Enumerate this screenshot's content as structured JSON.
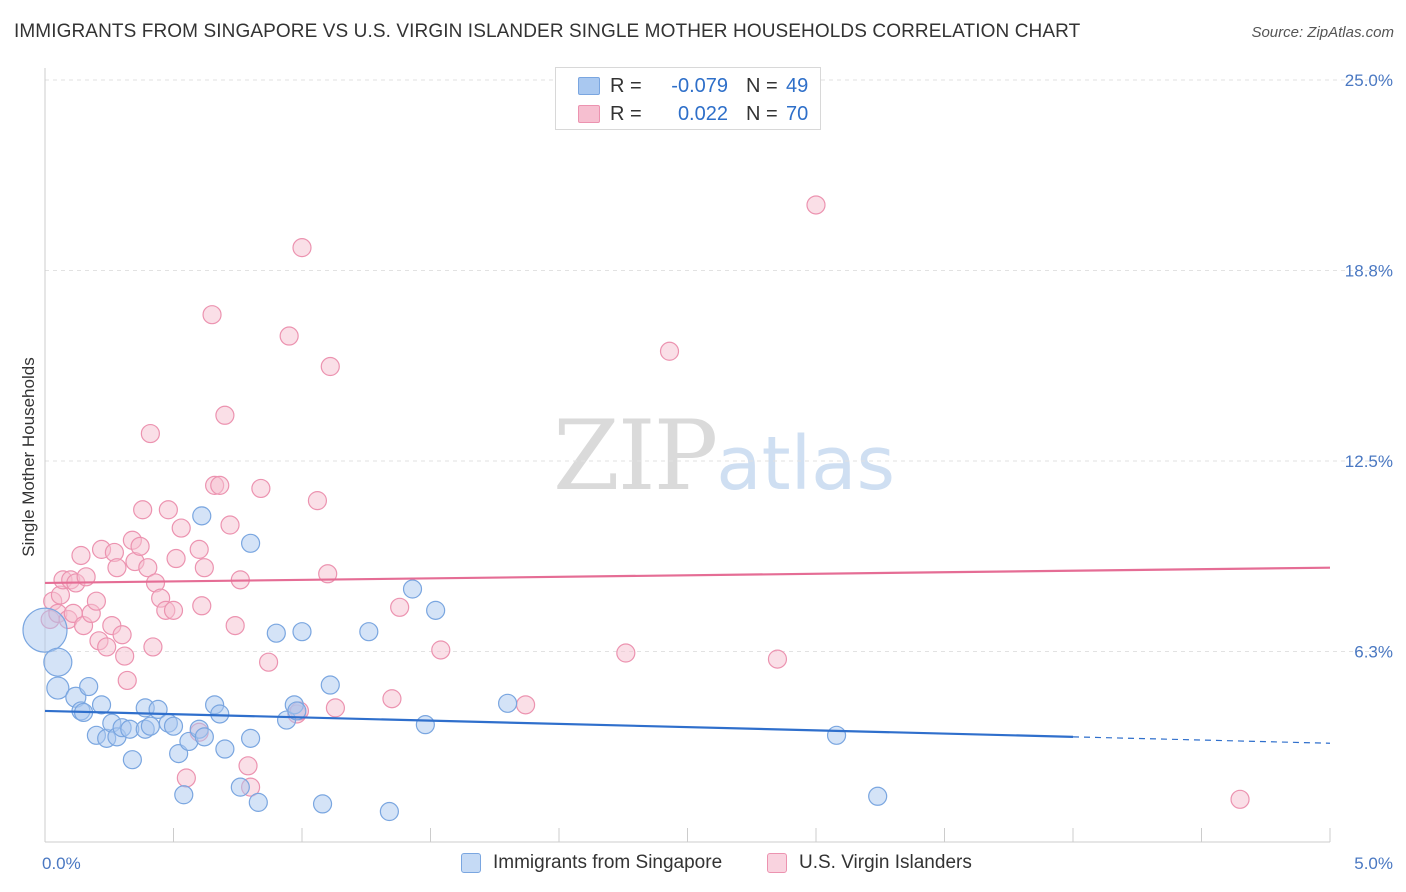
{
  "title": "IMMIGRANTS FROM SINGAPORE VS U.S. VIRGIN ISLANDER SINGLE MOTHER HOUSEHOLDS CORRELATION CHART",
  "source": "Source: ZipAtlas.com",
  "watermark": {
    "zip": "ZIP",
    "atlas": "atlas"
  },
  "legend": {
    "rows": [
      {
        "r_label": "R =",
        "r_value": "-0.079",
        "n_label": "N =",
        "n_value": "49",
        "color": "#a9c8f0",
        "border": "#7aa6e0"
      },
      {
        "r_label": "R =",
        "r_value": "0.022",
        "n_label": "N =",
        "n_value": "70",
        "color": "#f6bfd0",
        "border": "#ec93b0"
      }
    ]
  },
  "bottom_legend": [
    {
      "label": "Immigrants from Singapore",
      "color": "#c5daf5",
      "border": "#7aa6e0"
    },
    {
      "label": "U.S. Virgin Islanders",
      "color": "#f9d3df",
      "border": "#ec93b0"
    }
  ],
  "chart_data": {
    "type": "scatter",
    "title": "IMMIGRANTS FROM SINGAPORE VS U.S. VIRGIN ISLANDER SINGLE MOTHER HOUSEHOLDS CORRELATION CHART",
    "xlabel": "",
    "ylabel": "Single Mother Households",
    "xlim": [
      0.0,
      5.0
    ],
    "ylim": [
      0.0,
      25.0
    ],
    "x_tick_labels": [
      "0.0%",
      "5.0%"
    ],
    "y_ticks": [
      6.25,
      12.5,
      18.75,
      25.0
    ],
    "y_tick_labels": [
      "6.3%",
      "12.5%",
      "18.8%",
      "25.0%"
    ],
    "grid": true,
    "legend_position": "top-center",
    "series": [
      {
        "name": "Immigrants from Singapore",
        "color": "#7aa6e0",
        "fill": "#a9c8f0",
        "trend": {
          "x": [
            0.0,
            4.0
          ],
          "y": [
            4.3,
            3.45
          ],
          "dashed_to": [
            5.0,
            3.24
          ],
          "color": "#2f6fcc"
        },
        "points": [
          [
            0.0,
            6.95,
            22
          ],
          [
            0.05,
            5.9,
            14
          ],
          [
            0.05,
            5.05,
            11
          ],
          [
            0.12,
            4.75,
            10
          ],
          [
            0.17,
            5.1,
            9
          ],
          [
            0.14,
            4.3,
            9
          ],
          [
            0.15,
            4.25,
            9
          ],
          [
            0.22,
            4.5,
            9
          ],
          [
            0.2,
            3.5,
            9
          ],
          [
            0.24,
            3.4,
            9
          ],
          [
            0.26,
            3.9,
            9
          ],
          [
            0.28,
            3.45,
            9
          ],
          [
            0.3,
            3.75,
            9
          ],
          [
            0.33,
            3.7,
            9
          ],
          [
            0.34,
            2.7,
            9
          ],
          [
            0.39,
            3.7,
            9
          ],
          [
            0.39,
            4.4,
            9
          ],
          [
            0.41,
            3.8,
            9
          ],
          [
            0.44,
            4.35,
            9
          ],
          [
            0.48,
            3.9,
            9
          ],
          [
            0.5,
            3.8,
            9
          ],
          [
            0.52,
            2.9,
            9
          ],
          [
            0.54,
            1.55,
            9
          ],
          [
            0.56,
            3.3,
            9
          ],
          [
            0.6,
            3.7,
            9
          ],
          [
            0.62,
            3.45,
            9
          ],
          [
            0.61,
            10.7,
            9
          ],
          [
            0.66,
            4.5,
            9
          ],
          [
            0.68,
            4.2,
            9
          ],
          [
            0.7,
            3.05,
            9
          ],
          [
            0.76,
            1.8,
            9
          ],
          [
            0.8,
            3.4,
            9
          ],
          [
            0.8,
            9.8,
            9
          ],
          [
            0.83,
            1.3,
            9
          ],
          [
            0.9,
            6.85,
            9
          ],
          [
            0.94,
            4.0,
            9
          ],
          [
            0.97,
            4.5,
            9
          ],
          [
            1.0,
            6.9,
            9
          ],
          [
            1.08,
            1.25,
            9
          ],
          [
            1.11,
            5.15,
            9
          ],
          [
            1.26,
            6.9,
            9
          ],
          [
            1.34,
            1.0,
            9
          ],
          [
            1.43,
            8.3,
            9
          ],
          [
            1.48,
            3.85,
            9
          ],
          [
            1.52,
            7.6,
            9
          ],
          [
            1.8,
            4.55,
            9
          ],
          [
            3.08,
            3.5,
            9
          ],
          [
            3.24,
            1.5,
            9
          ],
          [
            0.98,
            4.3,
            9
          ]
        ]
      },
      {
        "name": "U.S. Virgin Islanders",
        "color": "#ec93b0",
        "fill": "#f6bfd0",
        "trend": {
          "x": [
            0.0,
            5.0
          ],
          "y": [
            8.5,
            9.0
          ],
          "color": "#e56d95"
        },
        "points": [
          [
            0.02,
            7.3,
            9
          ],
          [
            0.03,
            7.9,
            9
          ],
          [
            0.05,
            7.5,
            9
          ],
          [
            0.06,
            8.1,
            9
          ],
          [
            0.07,
            8.6,
            9
          ],
          [
            0.09,
            7.3,
            9
          ],
          [
            0.1,
            8.6,
            9
          ],
          [
            0.11,
            7.5,
            9
          ],
          [
            0.12,
            8.5,
            9
          ],
          [
            0.14,
            9.4,
            9
          ],
          [
            0.15,
            7.1,
            9
          ],
          [
            0.16,
            8.7,
            9
          ],
          [
            0.18,
            7.5,
            9
          ],
          [
            0.2,
            7.9,
            9
          ],
          [
            0.21,
            6.6,
            9
          ],
          [
            0.22,
            9.6,
            9
          ],
          [
            0.24,
            6.4,
            9
          ],
          [
            0.26,
            7.1,
            9
          ],
          [
            0.27,
            9.5,
            9
          ],
          [
            0.28,
            9.0,
            9
          ],
          [
            0.3,
            6.8,
            9
          ],
          [
            0.31,
            6.1,
            9
          ],
          [
            0.32,
            5.3,
            9
          ],
          [
            0.34,
            9.9,
            9
          ],
          [
            0.35,
            9.2,
            9
          ],
          [
            0.37,
            9.7,
            9
          ],
          [
            0.38,
            10.9,
            9
          ],
          [
            0.4,
            9.0,
            9
          ],
          [
            0.41,
            13.4,
            9
          ],
          [
            0.42,
            6.4,
            9
          ],
          [
            0.43,
            8.5,
            9
          ],
          [
            0.45,
            8.0,
            9
          ],
          [
            0.47,
            7.6,
            9
          ],
          [
            0.48,
            10.9,
            9
          ],
          [
            0.5,
            7.6,
            9
          ],
          [
            0.51,
            9.3,
            9
          ],
          [
            0.53,
            10.3,
            9
          ],
          [
            0.55,
            2.1,
            9
          ],
          [
            0.6,
            3.6,
            9
          ],
          [
            0.6,
            9.6,
            9
          ],
          [
            0.61,
            7.75,
            9
          ],
          [
            0.62,
            9.0,
            9
          ],
          [
            0.65,
            17.3,
            9
          ],
          [
            0.66,
            11.7,
            9
          ],
          [
            0.68,
            11.7,
            9
          ],
          [
            0.7,
            14.0,
            9
          ],
          [
            0.72,
            10.4,
            9
          ],
          [
            0.74,
            7.1,
            9
          ],
          [
            0.76,
            8.6,
            9
          ],
          [
            0.79,
            2.5,
            9
          ],
          [
            0.8,
            1.8,
            9
          ],
          [
            0.84,
            11.6,
            9
          ],
          [
            0.87,
            5.9,
            9
          ],
          [
            0.95,
            16.6,
            9
          ],
          [
            0.98,
            4.2,
            9
          ],
          [
            0.99,
            4.3,
            9
          ],
          [
            1.0,
            19.5,
            9
          ],
          [
            1.06,
            11.2,
            9
          ],
          [
            1.1,
            8.8,
            9
          ],
          [
            1.11,
            15.6,
            9
          ],
          [
            1.13,
            4.4,
            9
          ],
          [
            1.35,
            4.7,
            9
          ],
          [
            1.38,
            7.7,
            9
          ],
          [
            1.54,
            6.3,
            9
          ],
          [
            1.87,
            4.5,
            9
          ],
          [
            2.26,
            6.2,
            9
          ],
          [
            2.43,
            16.1,
            9
          ],
          [
            2.85,
            6.0,
            9
          ],
          [
            3.0,
            20.9,
            9
          ],
          [
            4.65,
            1.4,
            9
          ]
        ]
      }
    ]
  }
}
